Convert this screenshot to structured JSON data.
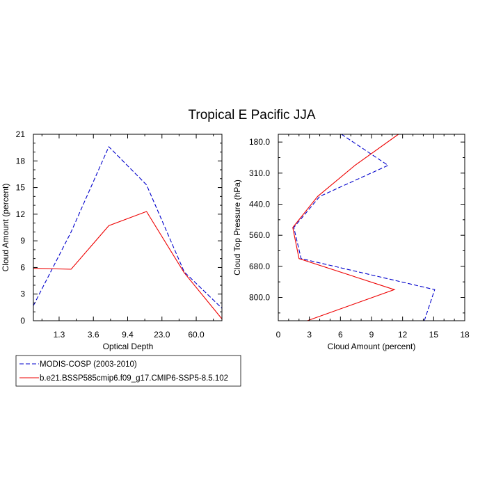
{
  "title": "Tropical E Pacific JJA",
  "colors": {
    "obs": "#0000cc",
    "model": "#ee0000",
    "axis": "#000000"
  },
  "legend": {
    "entries": [
      {
        "label": "MODIS-COSP (2003-2010)",
        "style": "dashed",
        "color": "#0000cc"
      },
      {
        "label": "b.e21.BSSP585cmip6.f09_g17.CMIP6-SSP5-8.5.102",
        "style": "solid",
        "color": "#ee0000"
      }
    ]
  },
  "chart_data": [
    {
      "type": "line",
      "xlabel": "Optical Depth",
      "ylabel": "Cloud Amount (percent)",
      "x_tick_labels": [
        "1.3",
        "3.6",
        "9.4",
        "23.0",
        "60.0"
      ],
      "ylim": [
        0,
        21
      ],
      "y_ticks": [
        0,
        3,
        6,
        9,
        12,
        15,
        18,
        21
      ],
      "series": [
        {
          "name": "MODIS-COSP (2003-2010)",
          "values": [
            1.7,
            10.0,
            19.6,
            15.3,
            5.5,
            1.4
          ]
        },
        {
          "name": "b.e21.BSSP585cmip6.f09_g17.CMIP6-SSP5-8.5.102",
          "values": [
            5.9,
            5.8,
            10.7,
            12.3,
            5.4,
            0.2
          ]
        }
      ]
    },
    {
      "type": "line",
      "xlabel": "Cloud Amount (percent)",
      "ylabel": "Cloud Top Pressure (hPa)",
      "x_ticks": [
        0,
        3,
        6,
        9,
        12,
        15,
        18
      ],
      "xlim": [
        0,
        18
      ],
      "y_tick_labels": [
        "180.0",
        "310.0",
        "440.0",
        "560.0",
        "680.0",
        "800.0"
      ],
      "series": [
        {
          "name": "MODIS-COSP (2003-2010)",
          "values": [
            6.1,
            10.6,
            4.0,
            1.5,
            2.2,
            15.1,
            14.1
          ]
        },
        {
          "name": "b.e21.BSSP585cmip6.f09_g17.CMIP6-SSP5-8.5.102",
          "values": [
            11.6,
            7.4,
            3.8,
            1.4,
            2.0,
            11.2,
            2.8
          ]
        }
      ]
    }
  ]
}
